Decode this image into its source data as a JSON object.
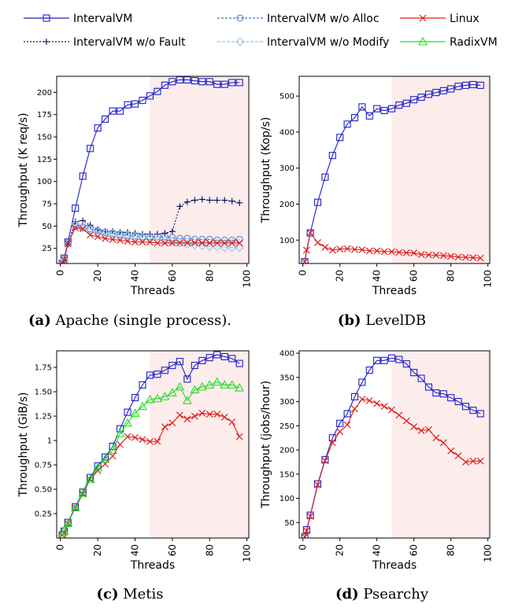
{
  "legend": [
    {
      "name": "IntervalVM",
      "color": "#1f1fc8",
      "marker": "square",
      "dash": ""
    },
    {
      "name": "IntervalVM w/o Fault",
      "color": "#0a0a5a",
      "marker": "plus",
      "dash": "2,2"
    },
    {
      "name": "IntervalVM w/o Alloc",
      "color": "#3a7bd5",
      "marker": "circle",
      "dash": "3,2"
    },
    {
      "name": "IntervalVM w/o Modify",
      "color": "#8fc3ea",
      "marker": "diamond",
      "dash": "4,2"
    },
    {
      "name": "Linux",
      "color": "#e02020",
      "marker": "x",
      "dash": ""
    },
    {
      "name": "RadixVM",
      "color": "#22dd22",
      "marker": "triangle",
      "dash": ""
    }
  ],
  "chart_data": [
    {
      "panel": "a",
      "type": "line",
      "caption_label": "(a)",
      "caption_text": "Apache (single process).",
      "xlabel": "Threads",
      "ylabel": "Throughput (K req/s)",
      "xlim": [
        -2,
        101
      ],
      "ylim": [
        8,
        218
      ],
      "xticks": [
        0,
        20,
        40,
        60,
        80,
        100
      ],
      "yticks": [
        25,
        50,
        75,
        100,
        125,
        150,
        175,
        200
      ],
      "shade_from": 48,
      "series": [
        {
          "name": "IntervalVM",
          "x": [
            1,
            2,
            4,
            8,
            12,
            16,
            20,
            24,
            28,
            32,
            36,
            40,
            44,
            48,
            52,
            56,
            60,
            64,
            68,
            72,
            76,
            80,
            84,
            88,
            92,
            96
          ],
          "values": [
            8,
            14,
            32,
            70,
            106,
            137,
            160,
            170,
            179,
            179,
            186,
            187,
            191,
            196,
            201,
            208,
            212,
            214,
            214,
            213,
            212,
            212,
            209,
            209,
            211,
            211
          ]
        },
        {
          "name": "IntervalVM w/o Fault",
          "x": [
            1,
            2,
            4,
            8,
            12,
            16,
            20,
            24,
            28,
            32,
            36,
            40,
            44,
            48,
            52,
            56,
            60,
            64,
            68,
            72,
            76,
            80,
            84,
            88,
            92,
            96
          ],
          "values": [
            8,
            12,
            30,
            55,
            56,
            51,
            46,
            44,
            44,
            43,
            43,
            42,
            41,
            41,
            41,
            42,
            44,
            72,
            77,
            79,
            80,
            79,
            79,
            79,
            78,
            76
          ]
        },
        {
          "name": "IntervalVM w/o Alloc",
          "x": [
            1,
            2,
            4,
            8,
            12,
            16,
            20,
            24,
            28,
            32,
            36,
            40,
            44,
            48,
            52,
            56,
            60,
            64,
            68,
            72,
            76,
            80,
            84,
            88,
            92,
            96
          ],
          "values": [
            8,
            13,
            31,
            50,
            48,
            47,
            45,
            43,
            42,
            41,
            40,
            39,
            38,
            38,
            38,
            38,
            37,
            36,
            36,
            35,
            35,
            35,
            34,
            34,
            34,
            35
          ]
        },
        {
          "name": "IntervalVM w/o Modify",
          "x": [
            1,
            2,
            4,
            8,
            12,
            16,
            20,
            24,
            28,
            32,
            36,
            40,
            44,
            48,
            52,
            56,
            60,
            64,
            68,
            72,
            76,
            80,
            84,
            88,
            92,
            96
          ],
          "values": [
            8,
            12,
            30,
            52,
            50,
            46,
            43,
            41,
            41,
            40,
            39,
            38,
            37,
            36,
            35,
            34,
            33,
            31,
            30,
            29,
            28,
            27,
            27,
            26,
            26,
            26
          ]
        },
        {
          "name": "Linux",
          "x": [
            1,
            2,
            4,
            8,
            12,
            16,
            20,
            24,
            28,
            32,
            36,
            40,
            44,
            48,
            52,
            56,
            60,
            64,
            68,
            72,
            76,
            80,
            84,
            88,
            92,
            96
          ],
          "values": [
            8,
            12,
            30,
            48,
            47,
            40,
            38,
            36,
            35,
            34,
            33,
            32,
            32,
            32,
            31,
            31,
            31,
            31,
            31,
            31,
            31,
            31,
            31,
            31,
            31,
            31
          ]
        }
      ]
    },
    {
      "panel": "b",
      "type": "line",
      "caption_label": "(b)",
      "caption_text": "LevelDB",
      "xlabel": "Threads",
      "ylabel": "Throughput (Kop/s)",
      "xlim": [
        -2,
        101
      ],
      "ylim": [
        35,
        555
      ],
      "xticks": [
        0,
        20,
        40,
        60,
        80,
        100
      ],
      "yticks": [
        100,
        200,
        300,
        400,
        500
      ],
      "shade_from": 48,
      "series": [
        {
          "name": "IntervalVM",
          "x": [
            1,
            4,
            8,
            12,
            16,
            20,
            24,
            28,
            32,
            36,
            40,
            44,
            48,
            52,
            56,
            60,
            64,
            68,
            72,
            76,
            80,
            84,
            88,
            92,
            96
          ],
          "values": [
            40,
            120,
            205,
            275,
            335,
            385,
            422,
            440,
            470,
            445,
            465,
            460,
            465,
            475,
            480,
            490,
            497,
            505,
            510,
            515,
            520,
            527,
            530,
            532,
            530
          ]
        },
        {
          "name": "Linux",
          "x": [
            1,
            2,
            4,
            8,
            12,
            16,
            20,
            24,
            28,
            32,
            36,
            40,
            44,
            48,
            52,
            56,
            60,
            64,
            68,
            72,
            76,
            80,
            84,
            88,
            92,
            96
          ],
          "values": [
            40,
            72,
            120,
            93,
            80,
            72,
            75,
            76,
            74,
            73,
            70,
            70,
            68,
            68,
            66,
            65,
            64,
            60,
            59,
            58,
            57,
            55,
            53,
            52,
            51,
            50
          ]
        }
      ]
    },
    {
      "panel": "c",
      "type": "line",
      "caption_label": "(c)",
      "caption_text": "Metis",
      "xlabel": "Threads",
      "ylabel": "Throughput (GiB/s)",
      "xlim": [
        -2,
        101
      ],
      "ylim": [
        0.0,
        1.92
      ],
      "xticks": [
        0,
        20,
        40,
        60,
        80,
        100
      ],
      "yticks": [
        0.25,
        0.5,
        0.75,
        1.0,
        1.25,
        1.5,
        1.75
      ],
      "shade_from": 48,
      "series": [
        {
          "name": "IntervalVM",
          "x": [
            1,
            2,
            4,
            8,
            12,
            16,
            20,
            24,
            28,
            32,
            36,
            40,
            44,
            48,
            52,
            56,
            60,
            64,
            68,
            72,
            76,
            80,
            84,
            88,
            92,
            96
          ],
          "values": [
            0.03,
            0.07,
            0.16,
            0.32,
            0.47,
            0.62,
            0.74,
            0.83,
            0.94,
            1.12,
            1.29,
            1.44,
            1.57,
            1.67,
            1.68,
            1.72,
            1.77,
            1.81,
            1.63,
            1.77,
            1.82,
            1.85,
            1.88,
            1.86,
            1.84,
            1.79
          ]
        },
        {
          "name": "Linux",
          "x": [
            1,
            2,
            4,
            8,
            12,
            16,
            20,
            24,
            28,
            32,
            36,
            40,
            44,
            48,
            52,
            56,
            60,
            64,
            68,
            72,
            76,
            80,
            84,
            88,
            92,
            96
          ],
          "values": [
            0.03,
            0.06,
            0.15,
            0.31,
            0.45,
            0.6,
            0.69,
            0.76,
            0.84,
            0.96,
            1.04,
            1.03,
            1.01,
            0.99,
            0.99,
            1.14,
            1.18,
            1.26,
            1.22,
            1.25,
            1.28,
            1.27,
            1.27,
            1.24,
            1.19,
            1.04
          ]
        },
        {
          "name": "RadixVM",
          "x": [
            1,
            2,
            4,
            8,
            12,
            16,
            20,
            24,
            28,
            32,
            36,
            40,
            44,
            48,
            52,
            56,
            60,
            64,
            68,
            72,
            76,
            80,
            84,
            88,
            92,
            96
          ],
          "values": [
            0.03,
            0.07,
            0.15,
            0.31,
            0.46,
            0.6,
            0.72,
            0.81,
            0.9,
            1.07,
            1.18,
            1.28,
            1.35,
            1.42,
            1.43,
            1.45,
            1.49,
            1.55,
            1.41,
            1.52,
            1.55,
            1.57,
            1.6,
            1.57,
            1.57,
            1.54
          ]
        }
      ]
    },
    {
      "panel": "d",
      "type": "line",
      "caption_label": "(d)",
      "caption_text": "Psearchy",
      "xlabel": "Threads",
      "ylabel": "Throughput (jobs/hour)",
      "xlim": [
        -2,
        101
      ],
      "ylim": [
        18,
        405
      ],
      "xticks": [
        0,
        20,
        40,
        60,
        80,
        100
      ],
      "yticks": [
        50,
        100,
        150,
        200,
        250,
        300,
        350,
        400
      ],
      "shade_from": 48,
      "series": [
        {
          "name": "IntervalVM",
          "x": [
            1,
            2,
            4,
            8,
            12,
            16,
            20,
            24,
            28,
            32,
            36,
            40,
            44,
            48,
            52,
            56,
            60,
            64,
            68,
            72,
            76,
            80,
            84,
            88,
            92,
            96
          ],
          "values": [
            20,
            35,
            65,
            130,
            180,
            225,
            255,
            275,
            310,
            340,
            365,
            385,
            385,
            390,
            387,
            378,
            360,
            348,
            330,
            318,
            316,
            308,
            300,
            290,
            282,
            275
          ]
        },
        {
          "name": "Linux",
          "x": [
            1,
            2,
            4,
            8,
            12,
            16,
            20,
            24,
            28,
            32,
            36,
            40,
            44,
            48,
            52,
            56,
            60,
            64,
            68,
            72,
            76,
            80,
            84,
            88,
            92,
            96
          ],
          "values": [
            20,
            33,
            63,
            128,
            178,
            215,
            238,
            252,
            285,
            305,
            302,
            296,
            290,
            283,
            272,
            260,
            248,
            240,
            242,
            225,
            215,
            198,
            188,
            175,
            177,
            177
          ]
        }
      ]
    }
  ]
}
